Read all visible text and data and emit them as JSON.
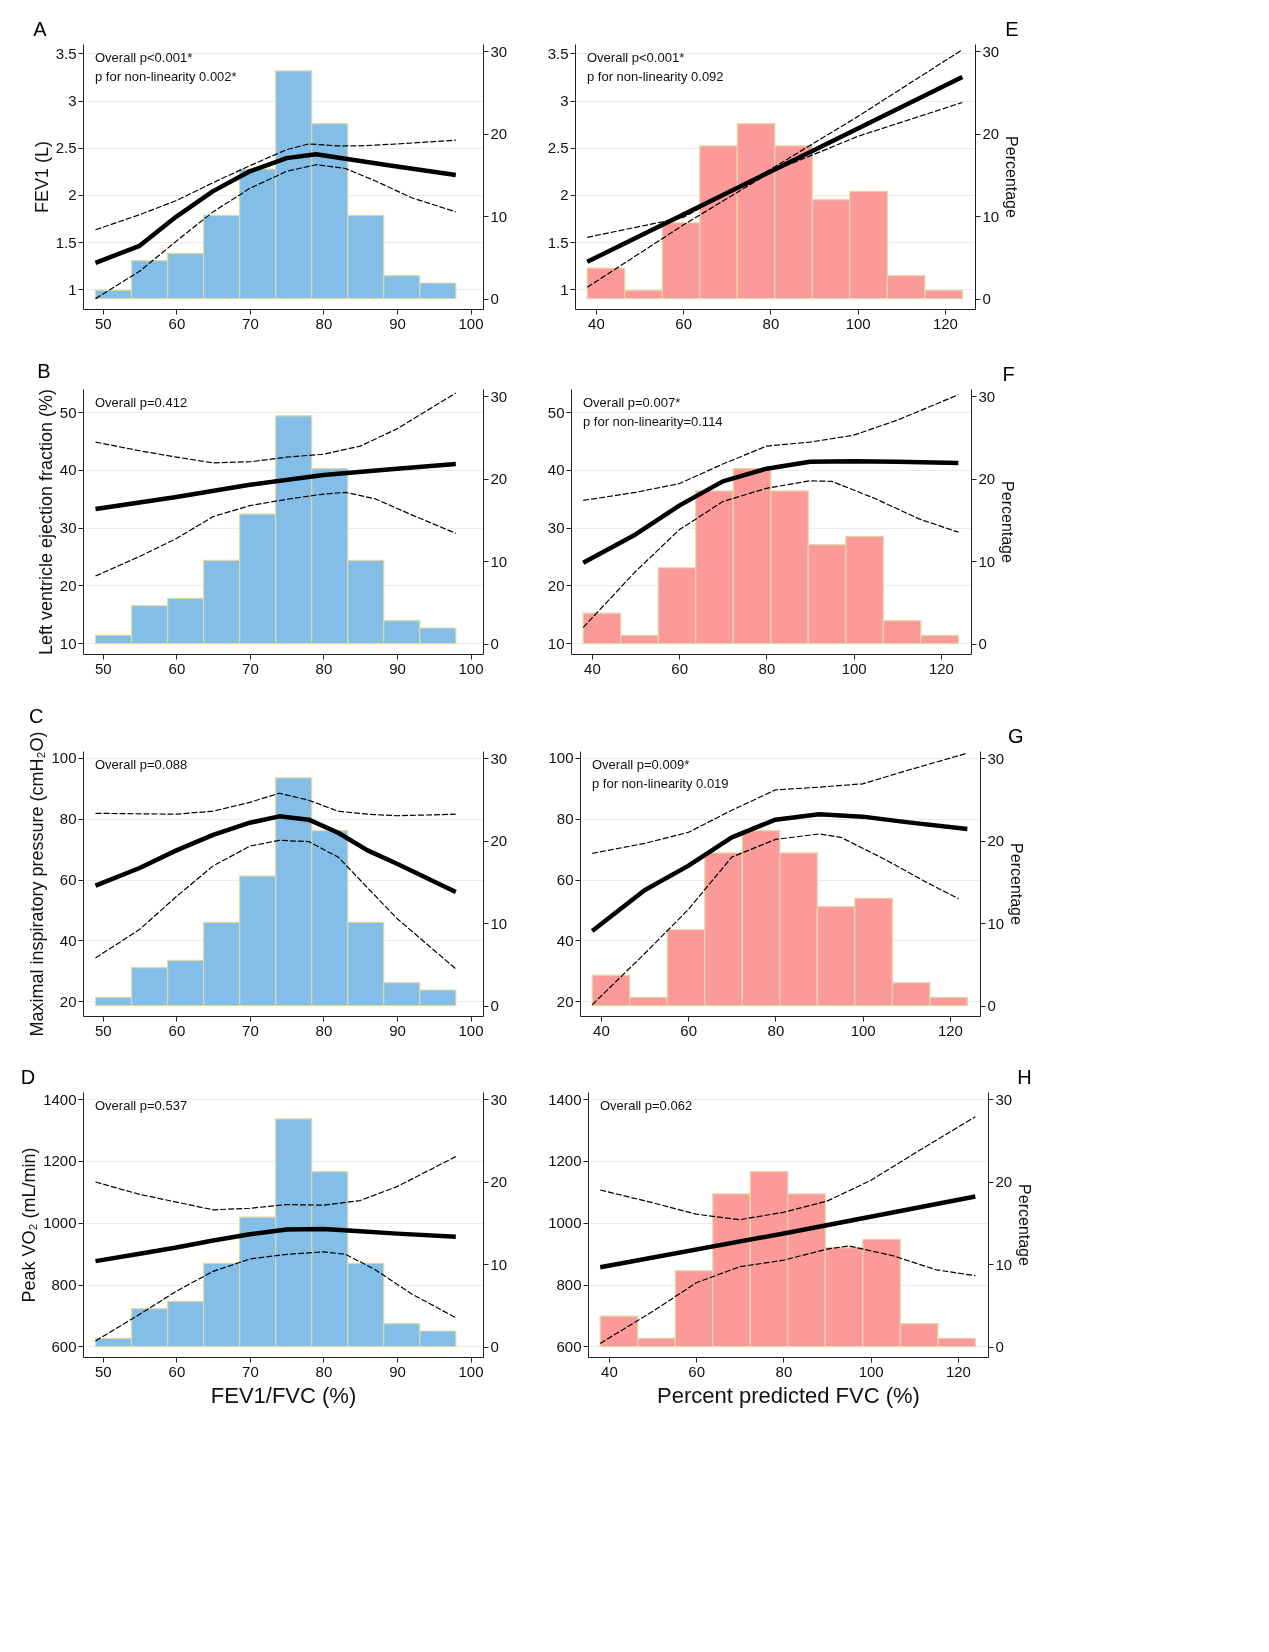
{
  "chart_data": [
    {
      "type": "line",
      "title": "A",
      "ylabel": "FEV1 (L)",
      "xlim": [
        47.3,
        101.7
      ],
      "xticks": [
        50,
        60,
        70,
        80,
        90,
        100
      ],
      "ylim": [
        0.79,
        3.6
      ],
      "yticks": [
        1,
        1.5,
        2,
        2.5,
        3,
        3.5
      ],
      "y2lim": [
        -1.25,
        30.85
      ],
      "y2ticks": [
        0,
        10,
        20,
        30
      ],
      "grid": "y",
      "annotations": [
        "Overall p<0.001*",
        "p for non-linearity 0.002*"
      ],
      "series": [
        {
          "type": "histogram",
          "axis": "y2",
          "color": "#82bee8",
          "bins": [
            49,
            53.9,
            58.8,
            63.7,
            68.6,
            73.5,
            78.4,
            83.3,
            88.2,
            93.1,
            98
          ],
          "values": [
            1.0,
            4.6,
            5.5,
            10.1,
            15.7,
            27.6,
            21.2,
            10.1,
            2.8,
            1.9
          ]
        },
        {
          "line_style": "solid",
          "color": "#000000",
          "x": [
            49,
            55,
            60,
            65,
            70,
            75,
            79,
            85,
            90,
            98
          ],
          "values": [
            1.28,
            1.46,
            1.77,
            2.04,
            2.25,
            2.39,
            2.43,
            2.36,
            2.3,
            2.21
          ]
        },
        {
          "line_style": "dashed",
          "color": "#000000",
          "x": [
            49,
            55,
            60,
            65,
            70,
            75,
            78,
            82,
            85,
            90,
            98
          ],
          "values": [
            1.63,
            1.79,
            1.94,
            2.13,
            2.31,
            2.48,
            2.54,
            2.52,
            2.52,
            2.54,
            2.58
          ]
        },
        {
          "line_style": "dashed",
          "color": "#000000",
          "x": [
            49,
            55,
            60,
            65,
            70,
            75,
            79,
            83,
            87,
            92,
            98
          ],
          "values": [
            0.9,
            1.19,
            1.51,
            1.82,
            2.07,
            2.25,
            2.32,
            2.28,
            2.15,
            1.97,
            1.82
          ]
        }
      ]
    },
    {
      "type": "line",
      "title": "E",
      "y2label": "Percentage",
      "xlim": [
        35.2,
        126.9
      ],
      "xticks": [
        40,
        60,
        80,
        100,
        120
      ],
      "ylim": [
        0.79,
        3.6
      ],
      "yticks": [
        1,
        1.5,
        2,
        2.5,
        3,
        3.5
      ],
      "y2lim": [
        -1.25,
        30.85
      ],
      "y2ticks": [
        0,
        10,
        20,
        30
      ],
      "grid": "y",
      "annotations": [
        "Overall p<0.001*",
        "p for non-linearity 0.092"
      ],
      "series": [
        {
          "type": "histogram",
          "axis": "y2",
          "color": "#fc9a9a",
          "bins": [
            38,
            46.6,
            55.2,
            63.8,
            72.4,
            81,
            89.6,
            98.2,
            106.8,
            115.4,
            124
          ],
          "values": [
            3.7,
            1.0,
            9.2,
            18.5,
            21.2,
            18.5,
            12.0,
            13.0,
            2.8,
            1.0
          ]
        },
        {
          "line_style": "solid",
          "color": "#000000",
          "x": [
            38,
            81,
            124
          ],
          "values": [
            1.29,
            2.27,
            3.25
          ]
        },
        {
          "line_style": "dashed",
          "color": "#000000",
          "x": [
            38,
            60,
            80,
            100,
            124
          ],
          "values": [
            1.55,
            1.76,
            2.27,
            2.83,
            3.54
          ]
        },
        {
          "line_style": "dashed",
          "color": "#000000",
          "x": [
            38,
            60,
            80,
            100,
            124
          ],
          "values": [
            1.02,
            1.68,
            2.24,
            2.62,
            2.98
          ]
        }
      ]
    },
    {
      "type": "line",
      "title": "B",
      "ylabel": "Left ventricle ejection fraction  (%)",
      "xlim": [
        47.3,
        101.7
      ],
      "xticks": [
        50,
        60,
        70,
        80,
        90,
        100
      ],
      "ylim": [
        8.1,
        54
      ],
      "yticks": [
        10,
        20,
        30,
        40,
        50
      ],
      "y2lim": [
        -1.25,
        30.85
      ],
      "y2ticks": [
        0,
        10,
        20,
        30
      ],
      "grid": "y",
      "annotations": [
        "Overall p=0.412"
      ],
      "series": [
        {
          "type": "histogram",
          "axis": "y2",
          "color": "#82bee8",
          "bins": [
            49,
            53.9,
            58.8,
            63.7,
            68.6,
            73.5,
            78.4,
            83.3,
            88.2,
            93.1,
            98
          ],
          "values": [
            1.0,
            4.6,
            5.5,
            10.1,
            15.7,
            27.6,
            21.2,
            10.1,
            2.8,
            1.9
          ]
        },
        {
          "line_style": "solid",
          "color": "#000000",
          "x": [
            49,
            60,
            70,
            80,
            90,
            98
          ],
          "values": [
            33.2,
            35.3,
            37.4,
            39.1,
            40.2,
            41.0
          ]
        },
        {
          "line_style": "dashed",
          "color": "#000000",
          "x": [
            49,
            55,
            60,
            65,
            70,
            75,
            80,
            85,
            90,
            98
          ],
          "values": [
            44.8,
            43.3,
            42.2,
            41.2,
            41.4,
            42.2,
            42.7,
            44.1,
            47.1,
            53.3
          ]
        },
        {
          "line_style": "dashed",
          "color": "#000000",
          "x": [
            49,
            55,
            60,
            65,
            70,
            75,
            80,
            83,
            87,
            92,
            98
          ],
          "values": [
            21.6,
            25.0,
            28.1,
            31.9,
            33.8,
            34.9,
            35.8,
            36.1,
            35.0,
            32.2,
            29.0
          ]
        }
      ]
    },
    {
      "type": "line",
      "title": "F",
      "y2label": "Percentage",
      "xlim": [
        35.2,
        126.9
      ],
      "xticks": [
        40,
        60,
        80,
        100,
        120
      ],
      "ylim": [
        8.1,
        54
      ],
      "yticks": [
        10,
        20,
        30,
        40,
        50
      ],
      "y2lim": [
        -1.25,
        30.85
      ],
      "y2ticks": [
        0,
        10,
        20,
        30
      ],
      "grid": "y",
      "annotations": [
        "Overall p=0.007*",
        "p for non-linearity=0.114"
      ],
      "series": [
        {
          "type": "histogram",
          "axis": "y2",
          "color": "#fc9a9a",
          "bins": [
            38,
            46.6,
            55.2,
            63.8,
            72.4,
            81,
            89.6,
            98.2,
            106.8,
            115.4,
            124
          ],
          "values": [
            3.7,
            1.0,
            9.2,
            18.5,
            21.2,
            18.5,
            12.0,
            13.0,
            2.8,
            1.0
          ]
        },
        {
          "line_style": "solid",
          "color": "#000000",
          "x": [
            38,
            50,
            60,
            70,
            80,
            90,
            100,
            110,
            124
          ],
          "values": [
            23.9,
            28.8,
            33.8,
            38.0,
            40.2,
            41.4,
            41.5,
            41.4,
            41.2
          ]
        },
        {
          "line_style": "dashed",
          "color": "#000000",
          "x": [
            38,
            50,
            60,
            70,
            80,
            90,
            100,
            110,
            124
          ],
          "values": [
            34.7,
            36.1,
            37.6,
            41.0,
            44.1,
            44.8,
            46.0,
            48.6,
            53.0
          ]
        },
        {
          "line_style": "dashed",
          "color": "#000000",
          "x": [
            38,
            50,
            60,
            70,
            80,
            90,
            95,
            105,
            115,
            124
          ],
          "values": [
            12.7,
            22.4,
            29.6,
            34.5,
            36.8,
            38.1,
            38.0,
            35.0,
            31.5,
            29.2
          ]
        }
      ]
    },
    {
      "type": "line",
      "title": "C",
      "ylabel": "Maximal inspiratory pressure (cmH₂O)",
      "xlim": [
        47.3,
        101.7
      ],
      "xticks": [
        50,
        60,
        70,
        80,
        90,
        100
      ],
      "ylim": [
        15.1,
        102.3
      ],
      "yticks": [
        20,
        40,
        60,
        80,
        100
      ],
      "y2lim": [
        -1.25,
        30.85
      ],
      "y2ticks": [
        0,
        10,
        20,
        30
      ],
      "grid": "y",
      "annotations": [
        "Overall p=0.088"
      ],
      "series": [
        {
          "type": "histogram",
          "axis": "y2",
          "color": "#82bee8",
          "bins": [
            49,
            53.9,
            58.8,
            63.7,
            68.6,
            73.5,
            78.4,
            83.3,
            88.2,
            93.1,
            98
          ],
          "values": [
            1.0,
            4.6,
            5.5,
            10.1,
            15.7,
            27.6,
            21.2,
            10.1,
            2.8,
            1.9
          ]
        },
        {
          "line_style": "solid",
          "color": "#000000",
          "x": [
            49,
            55,
            60,
            65,
            70,
            74,
            78,
            82,
            86,
            90,
            98
          ],
          "values": [
            58.0,
            63.8,
            69.6,
            74.7,
            78.7,
            80.8,
            79.7,
            75.4,
            69.6,
            65.2,
            55.9
          ]
        },
        {
          "line_style": "dashed",
          "color": "#000000",
          "x": [
            49,
            60,
            65,
            70,
            74,
            78,
            82,
            86,
            90,
            98
          ],
          "values": [
            81.8,
            81.5,
            82.5,
            85.4,
            88.4,
            86.1,
            82.5,
            81.5,
            81.0,
            81.5
          ]
        },
        {
          "line_style": "dashed",
          "color": "#000000",
          "x": [
            49,
            55,
            60,
            65,
            70,
            74,
            78,
            82,
            86,
            90,
            98
          ],
          "values": [
            34.2,
            43.6,
            54.4,
            64.5,
            71.0,
            72.9,
            72.5,
            67.4,
            57.3,
            47.2,
            30.6
          ]
        }
      ]
    },
    {
      "type": "line",
      "title": "G",
      "y2label": "Percentage",
      "xlim": [
        35.2,
        126.9
      ],
      "xticks": [
        40,
        60,
        80,
        100,
        120
      ],
      "ylim": [
        15.1,
        102.3
      ],
      "yticks": [
        20,
        40,
        60,
        80,
        100
      ],
      "y2lim": [
        -1.25,
        30.85
      ],
      "y2ticks": [
        0,
        10,
        20,
        30
      ],
      "grid": "y",
      "annotations": [
        "Overall p=0.009*",
        "p for non-linearity 0.019"
      ],
      "series": [
        {
          "type": "histogram",
          "axis": "y2",
          "color": "#fc9a9a",
          "bins": [
            38,
            46.6,
            55.2,
            63.8,
            72.4,
            81,
            89.6,
            98.2,
            106.8,
            115.4,
            124
          ],
          "values": [
            3.7,
            1.0,
            9.2,
            18.5,
            21.2,
            18.5,
            12.0,
            13.0,
            2.8,
            1.0
          ]
        },
        {
          "line_style": "solid",
          "color": "#000000",
          "x": [
            38,
            50,
            60,
            70,
            80,
            90,
            100,
            110,
            124
          ],
          "values": [
            43.1,
            56.5,
            64.5,
            73.9,
            79.7,
            81.5,
            80.7,
            78.9,
            76.6
          ]
        },
        {
          "line_style": "dashed",
          "color": "#000000",
          "x": [
            38,
            50,
            60,
            70,
            80,
            90,
            100,
            110,
            124
          ],
          "values": [
            68.6,
            71.9,
            75.5,
            82.8,
            89.5,
            90.4,
            91.5,
            95.8,
            101.6
          ]
        },
        {
          "line_style": "dashed",
          "color": "#000000",
          "x": [
            38,
            50,
            60,
            70,
            80,
            90,
            95,
            105,
            115,
            122
          ],
          "values": [
            18.8,
            35.6,
            50.1,
            67.4,
            73.2,
            75.0,
            73.9,
            66.7,
            58.8,
            53.7
          ]
        }
      ]
    },
    {
      "type": "line",
      "title": "D",
      "ylabel": "Peak VO₂ (mL/min)",
      "xlabel": "FEV1/FVC (%)",
      "xlim": [
        47.3,
        101.7
      ],
      "xticks": [
        50,
        60,
        70,
        80,
        90,
        100
      ],
      "ylim": [
        566,
        1423
      ],
      "yticks": [
        600,
        800,
        1000,
        1200,
        1400
      ],
      "y2lim": [
        -1.25,
        30.85
      ],
      "y2ticks": [
        0,
        10,
        20,
        30
      ],
      "grid": "y",
      "annotations": [
        "Overall p=0.537"
      ],
      "series": [
        {
          "type": "histogram",
          "axis": "y2",
          "color": "#82bee8",
          "bins": [
            49,
            53.9,
            58.8,
            63.7,
            68.6,
            73.5,
            78.4,
            83.3,
            88.2,
            93.1,
            98
          ],
          "values": [
            1.0,
            4.6,
            5.5,
            10.1,
            15.7,
            27.6,
            21.2,
            10.1,
            2.8,
            1.9
          ]
        },
        {
          "line_style": "solid",
          "color": "#000000",
          "x": [
            49,
            55,
            60,
            65,
            70,
            75,
            80,
            85,
            90,
            98
          ],
          "values": [
            876,
            900,
            920,
            943,
            963,
            978,
            980,
            973,
            965,
            955
          ]
        },
        {
          "line_style": "dashed",
          "color": "#000000",
          "x": [
            49,
            55,
            60,
            65,
            70,
            75,
            80,
            85,
            90,
            98
          ],
          "values": [
            1132,
            1092,
            1067,
            1042,
            1047,
            1059,
            1057,
            1072,
            1117,
            1214
          ]
        },
        {
          "line_style": "dashed",
          "color": "#000000",
          "x": [
            49,
            55,
            60,
            65,
            70,
            75,
            80,
            83,
            87,
            92,
            98
          ],
          "values": [
            618,
            704,
            779,
            843,
            883,
            898,
            906,
            898,
            849,
            770,
            693
          ]
        }
      ]
    },
    {
      "type": "line",
      "title": "H",
      "y2label": "Percentage",
      "xlabel": "Percent predicted FVC (%)",
      "xlim": [
        35.2,
        126.9
      ],
      "xticks": [
        40,
        60,
        80,
        100,
        120
      ],
      "ylim": [
        566,
        1423
      ],
      "yticks": [
        600,
        800,
        1000,
        1200,
        1400
      ],
      "y2lim": [
        -1.25,
        30.85
      ],
      "y2ticks": [
        0,
        10,
        20,
        30
      ],
      "grid": "y",
      "annotations": [
        "Overall p=0.062"
      ],
      "series": [
        {
          "type": "histogram",
          "axis": "y2",
          "color": "#fc9a9a",
          "bins": [
            38,
            46.6,
            55.2,
            63.8,
            72.4,
            81,
            89.6,
            98.2,
            106.8,
            115.4,
            124
          ],
          "values": [
            3.7,
            1.0,
            9.2,
            18.5,
            21.2,
            18.5,
            12.0,
            13.0,
            2.8,
            1.0
          ]
        },
        {
          "line_style": "solid",
          "color": "#000000",
          "x": [
            38,
            81,
            124
          ],
          "values": [
            856,
            968,
            1085
          ]
        },
        {
          "line_style": "dashed",
          "color": "#000000",
          "x": [
            38,
            50,
            60,
            70,
            80,
            90,
            100,
            110,
            124
          ],
          "values": [
            1106,
            1065,
            1028,
            1010,
            1034,
            1070,
            1137,
            1224,
            1343
          ]
        },
        {
          "line_style": "dashed",
          "color": "#000000",
          "x": [
            38,
            50,
            60,
            70,
            80,
            90,
            95,
            105,
            115,
            124
          ],
          "values": [
            610,
            713,
            806,
            858,
            879,
            915,
            925,
            894,
            848,
            829
          ]
        }
      ]
    }
  ]
}
